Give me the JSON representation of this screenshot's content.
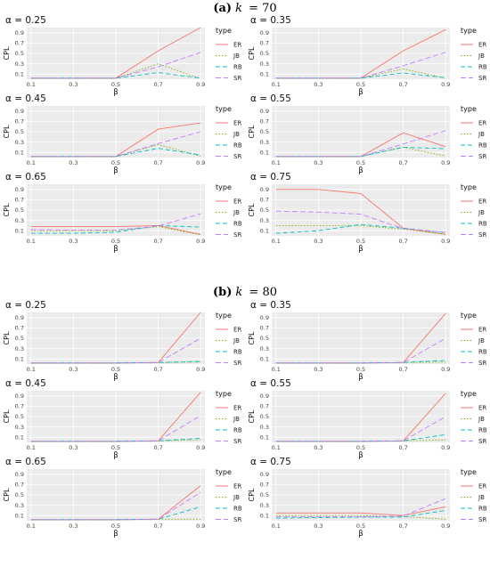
{
  "sections": [
    {
      "label": "(a)",
      "k_label": "k",
      "k_value": "70"
    },
    {
      "label": "(b)",
      "k_label": "k",
      "k_value": "80"
    }
  ],
  "colors": {
    "ER": "#F8766D",
    "JB": "#7CAE00",
    "RB": "#00BFC4",
    "SR": "#C77CFF",
    "panel_bg": "#EBEBEB",
    "grid": "#FFFFFF"
  },
  "legend": {
    "title": "type",
    "entries": [
      "ER",
      "JB",
      "RB",
      "SR"
    ]
  },
  "axis": {
    "ylabel": "CPL",
    "xlabel": "β",
    "alpha_symbol": "α"
  },
  "chart_data": [
    {
      "type": "line",
      "section": "(a) k = 70",
      "title": "α = 0.25",
      "x": [
        0.1,
        0.3,
        0.5,
        0.7,
        0.9
      ],
      "xticks": [
        "0.1",
        "0.3",
        "0.5",
        "0.7",
        "0.9"
      ],
      "yticks": [
        "0.1",
        "0.3",
        "0.5",
        "0.7",
        "0.9"
      ],
      "ylim": [
        0,
        1
      ],
      "xlabel": "β",
      "ylabel": "CPL",
      "series": [
        {
          "name": "ER",
          "values": [
            0.02,
            0.02,
            0.02,
            0.55,
            1.0
          ]
        },
        {
          "name": "JB",
          "values": [
            0.02,
            0.02,
            0.02,
            0.3,
            0.01
          ]
        },
        {
          "name": "RB",
          "values": [
            0.02,
            0.02,
            0.02,
            0.13,
            0.02
          ]
        },
        {
          "name": "SR",
          "values": [
            0.02,
            0.02,
            0.02,
            0.24,
            0.52
          ]
        }
      ]
    },
    {
      "type": "line",
      "section": "(a) k = 70",
      "title": "α = 0.35",
      "x": [
        0.1,
        0.3,
        0.5,
        0.7,
        0.9
      ],
      "xticks": [
        "0.1",
        "0.3",
        "0.5",
        "0.7",
        "0.9"
      ],
      "yticks": [
        "0.1",
        "0.3",
        "0.5",
        "0.7",
        "0.9"
      ],
      "ylim": [
        0,
        1
      ],
      "xlabel": "β",
      "ylabel": "CPL",
      "series": [
        {
          "name": "ER",
          "values": [
            0.02,
            0.02,
            0.02,
            0.55,
            0.96
          ]
        },
        {
          "name": "JB",
          "values": [
            0.02,
            0.02,
            0.02,
            0.2,
            0.02
          ]
        },
        {
          "name": "RB",
          "values": [
            0.02,
            0.02,
            0.02,
            0.12,
            0.03
          ]
        },
        {
          "name": "SR",
          "values": [
            0.02,
            0.02,
            0.02,
            0.26,
            0.52
          ]
        }
      ]
    },
    {
      "type": "line",
      "section": "(a) k = 70",
      "title": "α = 0.45",
      "x": [
        0.1,
        0.3,
        0.5,
        0.7,
        0.9
      ],
      "xticks": [
        "0.1",
        "0.3",
        "0.5",
        "0.7",
        "0.9"
      ],
      "yticks": [
        "0.1",
        "0.3",
        "0.5",
        "0.7",
        "0.9"
      ],
      "ylim": [
        0,
        1
      ],
      "xlabel": "β",
      "ylabel": "CPL",
      "series": [
        {
          "name": "ER",
          "values": [
            0.02,
            0.02,
            0.02,
            0.55,
            0.67
          ]
        },
        {
          "name": "JB",
          "values": [
            0.02,
            0.02,
            0.02,
            0.25,
            0.03
          ]
        },
        {
          "name": "RB",
          "values": [
            0.02,
            0.02,
            0.02,
            0.18,
            0.05
          ]
        },
        {
          "name": "SR",
          "values": [
            0.02,
            0.02,
            0.02,
            0.27,
            0.5
          ]
        }
      ]
    },
    {
      "type": "line",
      "section": "(a) k = 70",
      "title": "α = 0.55",
      "x": [
        0.1,
        0.3,
        0.5,
        0.7,
        0.9
      ],
      "xticks": [
        "0.1",
        "0.3",
        "0.5",
        "0.7",
        "0.9"
      ],
      "yticks": [
        "0.1",
        "0.3",
        "0.5",
        "0.7",
        "0.9"
      ],
      "ylim": [
        0,
        1
      ],
      "xlabel": "β",
      "ylabel": "CPL",
      "series": [
        {
          "name": "ER",
          "values": [
            0.02,
            0.02,
            0.02,
            0.48,
            0.21
          ]
        },
        {
          "name": "JB",
          "values": [
            0.02,
            0.02,
            0.02,
            0.2,
            0.03
          ]
        },
        {
          "name": "RB",
          "values": [
            0.02,
            0.02,
            0.02,
            0.2,
            0.17
          ]
        },
        {
          "name": "SR",
          "values": [
            0.02,
            0.02,
            0.02,
            0.26,
            0.52
          ]
        }
      ]
    },
    {
      "type": "line",
      "section": "(a) k = 70",
      "title": "α = 0.65",
      "x": [
        0.1,
        0.3,
        0.5,
        0.7,
        0.9
      ],
      "xticks": [
        "0.1",
        "0.3",
        "0.5",
        "0.7",
        "0.9"
      ],
      "yticks": [
        "0.1",
        "0.3",
        "0.5",
        "0.7",
        "0.9"
      ],
      "ylim": [
        0,
        1
      ],
      "xlabel": "β",
      "ylabel": "CPL",
      "series": [
        {
          "name": "ER",
          "values": [
            0.18,
            0.18,
            0.18,
            0.2,
            0.03
          ]
        },
        {
          "name": "JB",
          "values": [
            0.1,
            0.1,
            0.1,
            0.18,
            0.02
          ]
        },
        {
          "name": "RB",
          "values": [
            0.05,
            0.05,
            0.07,
            0.2,
            0.17
          ]
        },
        {
          "name": "SR",
          "values": [
            0.12,
            0.11,
            0.11,
            0.19,
            0.43
          ]
        }
      ]
    },
    {
      "type": "line",
      "section": "(a) k = 70",
      "title": "α = 0.75",
      "x": [
        0.1,
        0.3,
        0.5,
        0.7,
        0.9
      ],
      "xticks": [
        "0.1",
        "0.3",
        "0.5",
        "0.7",
        "0.9"
      ],
      "yticks": [
        "0.1",
        "0.3",
        "0.5",
        "0.7",
        "0.9"
      ],
      "ylim": [
        0,
        1
      ],
      "xlabel": "β",
      "ylabel": "CPL",
      "series": [
        {
          "name": "ER",
          "values": [
            0.9,
            0.9,
            0.82,
            0.15,
            0.03
          ]
        },
        {
          "name": "JB",
          "values": [
            0.2,
            0.2,
            0.2,
            0.13,
            0.03
          ]
        },
        {
          "name": "RB",
          "values": [
            0.05,
            0.1,
            0.22,
            0.15,
            0.06
          ]
        },
        {
          "name": "SR",
          "values": [
            0.48,
            0.46,
            0.42,
            0.14,
            0.07
          ]
        }
      ]
    },
    {
      "type": "line",
      "section": "(b) k = 80",
      "title": "α = 0.25",
      "x": [
        0.1,
        0.3,
        0.5,
        0.7,
        0.9
      ],
      "xticks": [
        "0.1",
        "0.3",
        "0.5",
        "0.7",
        "0.9"
      ],
      "yticks": [
        "0.1",
        "0.3",
        "0.5",
        "0.7",
        "0.9"
      ],
      "ylim": [
        0,
        1
      ],
      "xlabel": "β",
      "ylabel": "CPL",
      "series": [
        {
          "name": "ER",
          "values": [
            0.02,
            0.02,
            0.02,
            0.03,
            1.0
          ]
        },
        {
          "name": "JB",
          "values": [
            0.02,
            0.02,
            0.02,
            0.03,
            0.04
          ]
        },
        {
          "name": "RB",
          "values": [
            0.02,
            0.02,
            0.02,
            0.03,
            0.05
          ]
        },
        {
          "name": "SR",
          "values": [
            0.02,
            0.02,
            0.02,
            0.03,
            0.5
          ]
        }
      ]
    },
    {
      "type": "line",
      "section": "(b) k = 80",
      "title": "α = 0.35",
      "x": [
        0.1,
        0.3,
        0.5,
        0.7,
        0.9
      ],
      "xticks": [
        "0.1",
        "0.3",
        "0.5",
        "0.7",
        "0.9"
      ],
      "yticks": [
        "0.1",
        "0.3",
        "0.5",
        "0.7",
        "0.9"
      ],
      "ylim": [
        0,
        1
      ],
      "xlabel": "β",
      "ylabel": "CPL",
      "series": [
        {
          "name": "ER",
          "values": [
            0.02,
            0.02,
            0.02,
            0.03,
            0.98
          ]
        },
        {
          "name": "JB",
          "values": [
            0.02,
            0.02,
            0.02,
            0.03,
            0.04
          ]
        },
        {
          "name": "RB",
          "values": [
            0.02,
            0.02,
            0.02,
            0.03,
            0.07
          ]
        },
        {
          "name": "SR",
          "values": [
            0.02,
            0.02,
            0.02,
            0.03,
            0.5
          ]
        }
      ]
    },
    {
      "type": "line",
      "section": "(b) k = 80",
      "title": "α = 0.45",
      "x": [
        0.1,
        0.3,
        0.5,
        0.7,
        0.9
      ],
      "xticks": [
        "0.1",
        "0.3",
        "0.5",
        "0.7",
        "0.9"
      ],
      "yticks": [
        "0.1",
        "0.3",
        "0.5",
        "0.7",
        "0.9"
      ],
      "ylim": [
        0,
        1
      ],
      "xlabel": "β",
      "ylabel": "CPL",
      "series": [
        {
          "name": "ER",
          "values": [
            0.02,
            0.02,
            0.02,
            0.03,
            0.97
          ]
        },
        {
          "name": "JB",
          "values": [
            0.02,
            0.02,
            0.02,
            0.03,
            0.05
          ]
        },
        {
          "name": "RB",
          "values": [
            0.02,
            0.02,
            0.02,
            0.03,
            0.08
          ]
        },
        {
          "name": "SR",
          "values": [
            0.02,
            0.02,
            0.02,
            0.03,
            0.52
          ]
        }
      ]
    },
    {
      "type": "line",
      "section": "(b) k = 80",
      "title": "α = 0.55",
      "x": [
        0.1,
        0.3,
        0.5,
        0.7,
        0.9
      ],
      "xticks": [
        "0.1",
        "0.3",
        "0.5",
        "0.7",
        "0.9"
      ],
      "yticks": [
        "0.1",
        "0.3",
        "0.5",
        "0.7",
        "0.9"
      ],
      "ylim": [
        0,
        1
      ],
      "xlabel": "β",
      "ylabel": "CPL",
      "series": [
        {
          "name": "ER",
          "values": [
            0.02,
            0.02,
            0.02,
            0.03,
            0.95
          ]
        },
        {
          "name": "JB",
          "values": [
            0.02,
            0.02,
            0.02,
            0.03,
            0.05
          ]
        },
        {
          "name": "RB",
          "values": [
            0.02,
            0.02,
            0.02,
            0.03,
            0.15
          ]
        },
        {
          "name": "SR",
          "values": [
            0.02,
            0.02,
            0.02,
            0.03,
            0.5
          ]
        }
      ]
    },
    {
      "type": "line",
      "section": "(b) k = 80",
      "title": "α = 0.65",
      "x": [
        0.1,
        0.3,
        0.5,
        0.7,
        0.9
      ],
      "xticks": [
        "0.1",
        "0.3",
        "0.5",
        "0.7",
        "0.9"
      ],
      "yticks": [
        "0.1",
        "0.3",
        "0.5",
        "0.7",
        "0.9"
      ],
      "ylim": [
        0,
        1
      ],
      "xlabel": "β",
      "ylabel": "CPL",
      "series": [
        {
          "name": "ER",
          "values": [
            0.02,
            0.02,
            0.02,
            0.03,
            0.68
          ]
        },
        {
          "name": "JB",
          "values": [
            0.02,
            0.02,
            0.02,
            0.03,
            0.03
          ]
        },
        {
          "name": "RB",
          "values": [
            0.02,
            0.02,
            0.02,
            0.03,
            0.27
          ]
        },
        {
          "name": "SR",
          "values": [
            0.02,
            0.02,
            0.02,
            0.03,
            0.55
          ]
        }
      ]
    },
    {
      "type": "line",
      "section": "(b) k = 80",
      "title": "α = 0.75",
      "x": [
        0.1,
        0.3,
        0.5,
        0.7,
        0.9
      ],
      "xticks": [
        "0.1",
        "0.3",
        "0.5",
        "0.7",
        "0.9"
      ],
      "yticks": [
        "0.1",
        "0.3",
        "0.5",
        "0.7",
        "0.9"
      ],
      "ylim": [
        0,
        1
      ],
      "xlabel": "β",
      "ylabel": "CPL",
      "series": [
        {
          "name": "ER",
          "values": [
            0.15,
            0.15,
            0.15,
            0.1,
            0.27
          ]
        },
        {
          "name": "JB",
          "values": [
            0.1,
            0.1,
            0.1,
            0.08,
            0.03
          ]
        },
        {
          "name": "RB",
          "values": [
            0.05,
            0.06,
            0.07,
            0.07,
            0.2
          ]
        },
        {
          "name": "SR",
          "values": [
            0.08,
            0.08,
            0.08,
            0.09,
            0.43
          ]
        }
      ]
    }
  ]
}
